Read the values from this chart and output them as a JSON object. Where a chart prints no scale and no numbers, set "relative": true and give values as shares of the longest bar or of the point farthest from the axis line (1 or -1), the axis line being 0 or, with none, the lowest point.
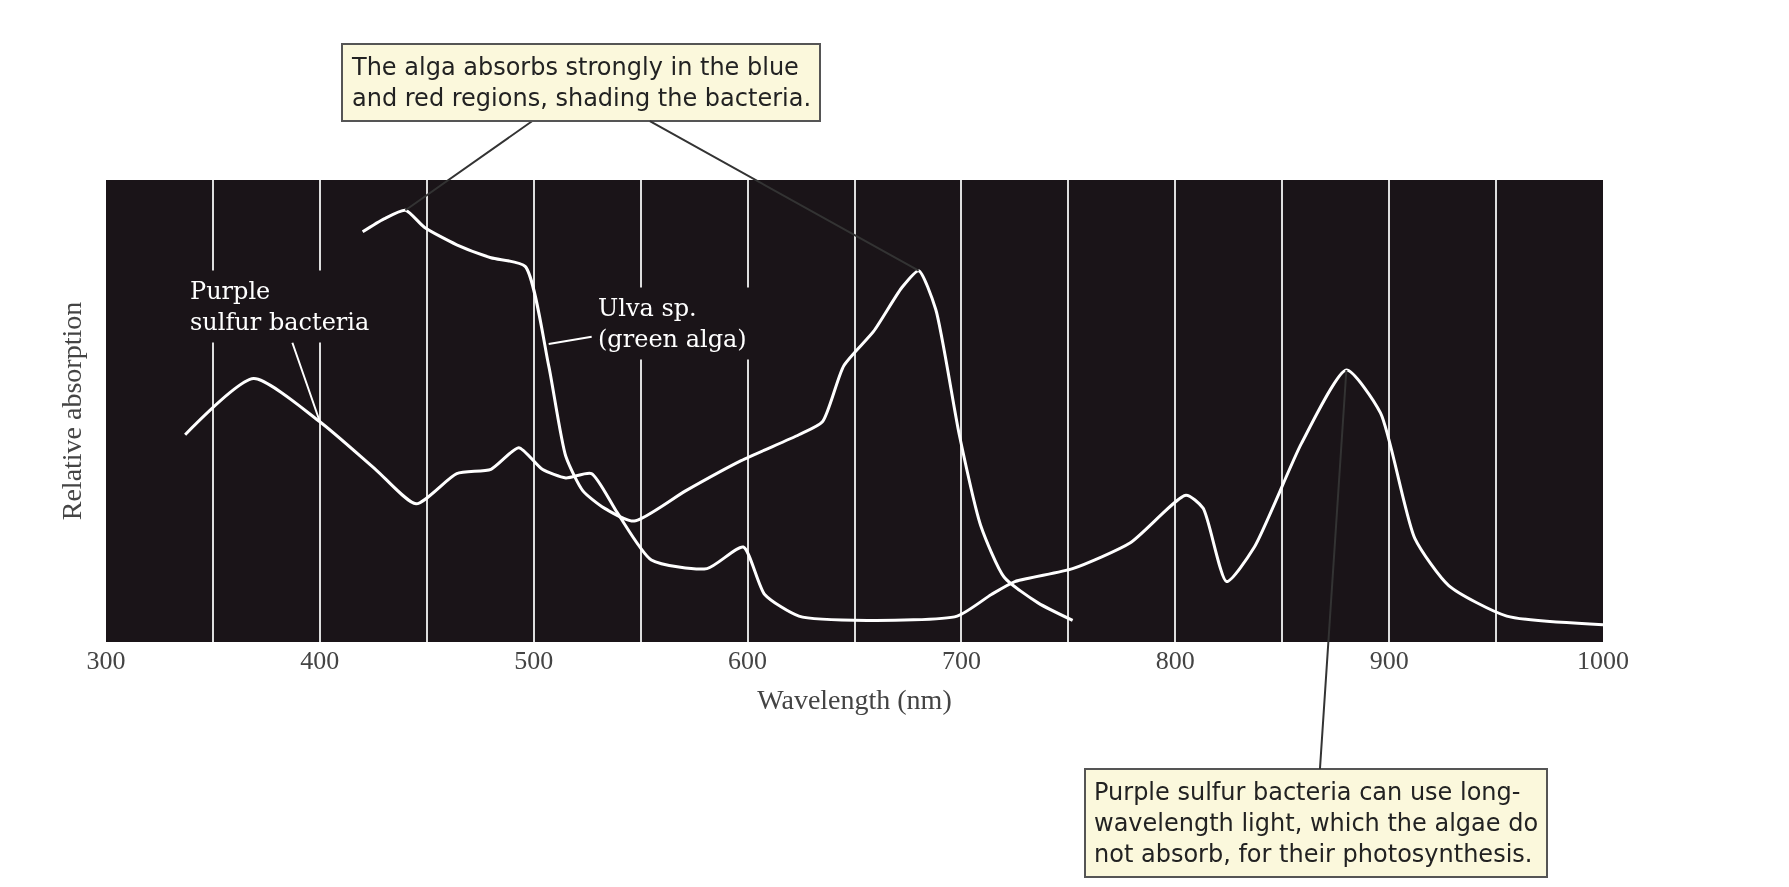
{
  "chart_data": {
    "type": "line",
    "relative": true,
    "xlabel": "Wavelength (nm)",
    "ylabel": "Relative absorption",
    "xlim": [
      300,
      1000
    ],
    "xticks": [
      300,
      {
        "value": 350,
        "label": null
      },
      400,
      {
        "value": 450,
        "label": null
      },
      500,
      {
        "value": 550,
        "label": null
      },
      600,
      {
        "value": 650,
        "label": null
      },
      700,
      {
        "value": 750,
        "label": null
      },
      800,
      {
        "value": 850,
        "label": null
      },
      900,
      {
        "value": 950,
        "label": null
      },
      1000
    ],
    "grid": "x",
    "marker": "none",
    "line_style": "solid",
    "series": [
      {
        "color": "#ffffff",
        "x": [
          337,
          369,
          400,
          426,
          445,
          464,
          480,
          493,
          504,
          515,
          527,
          539,
          555,
          581,
          598,
          608,
          624,
          656,
          698,
          714,
          725,
          752,
          779,
          805,
          813,
          824,
          837,
          859,
          880,
          896,
          912,
          928,
          955,
          1000
        ],
        "values": [
          0.48,
          0.61,
          0.51,
          0.4,
          0.32,
          0.39,
          0.4,
          0.45,
          0.4,
          0.38,
          0.39,
          0.3,
          0.19,
          0.17,
          0.22,
          0.11,
          0.06,
          0.05,
          0.06,
          0.11,
          0.14,
          0.17,
          0.23,
          0.34,
          0.31,
          0.14,
          0.22,
          0.46,
          0.63,
          0.53,
          0.24,
          0.13,
          0.06,
          0.04
        ]
      },
      {
        "color": "#ffffff",
        "x": [
          420,
          430,
          440,
          449,
          464,
          480,
          496,
          507,
          515,
          523,
          533,
          547,
          571,
          597,
          624,
          635,
          645,
          659,
          672,
          680,
          688,
          699,
          709,
          720,
          736,
          752
        ],
        "values": [
          0.95,
          0.98,
          1.0,
          0.96,
          0.92,
          0.89,
          0.87,
          0.64,
          0.43,
          0.35,
          0.31,
          0.28,
          0.35,
          0.42,
          0.48,
          0.51,
          0.64,
          0.72,
          0.82,
          0.86,
          0.77,
          0.48,
          0.27,
          0.15,
          0.09,
          0.05
        ]
      }
    ],
    "annotations": [
      {
        "text": "Purple\nsulfur bacteria",
        "x": 400,
        "y": 0.51
      },
      {
        "text": "Ulva sp.\n(green alga)",
        "x": 507,
        "y": 0.69
      },
      {
        "text": "The alga absorbs strongly in the blue\nand red regions, shading the bacteria.",
        "x": 680,
        "y": 0.86
      },
      {
        "text": "Purple sulfur bacteria can use long-\nwavelength light, which the algae do\nnot absorb, for their photosynthesis.",
        "x": 880,
        "y": 0.63
      }
    ]
  }
}
